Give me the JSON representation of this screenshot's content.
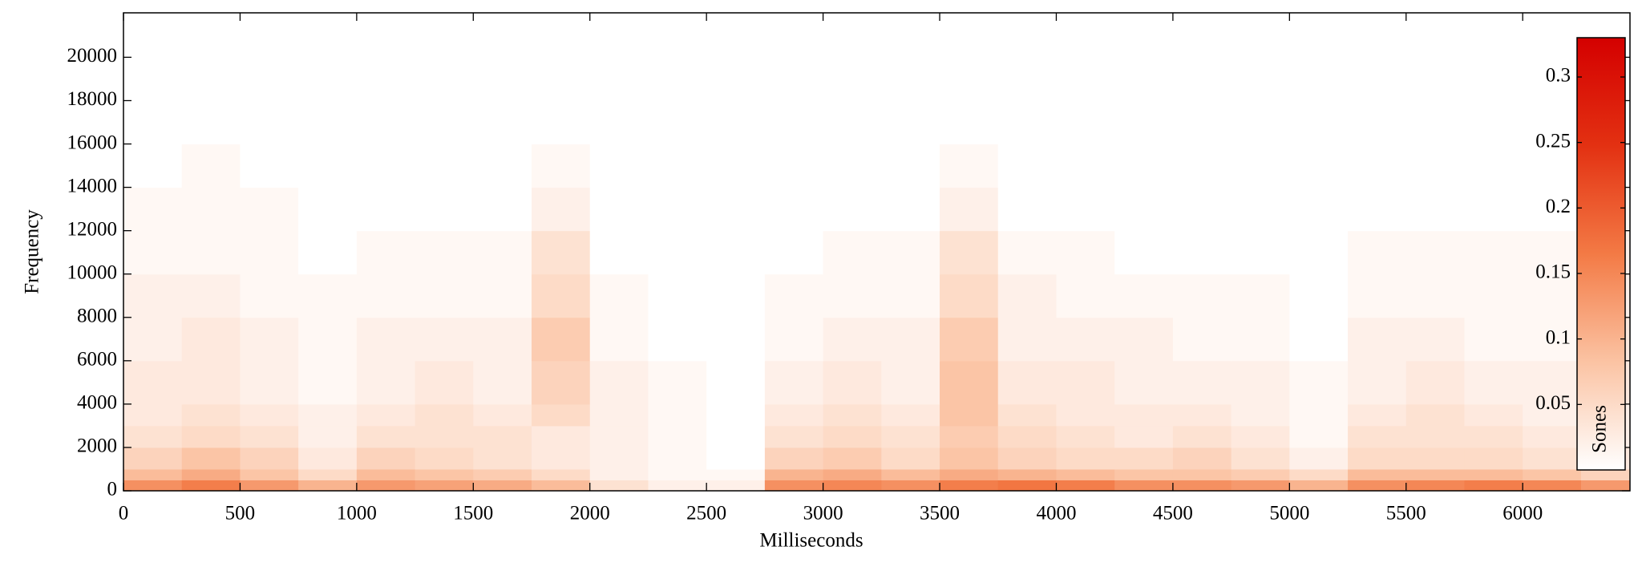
{
  "chart_data": {
    "type": "heatmap",
    "xlabel": "Milliseconds",
    "ylabel": "Frequency",
    "colorbar_label": "Sones",
    "xlim": [
      0,
      6460
    ],
    "ylim": [
      0,
      22050
    ],
    "xticks": [
      0,
      500,
      1000,
      1500,
      2000,
      2500,
      3000,
      3500,
      4000,
      4500,
      5000,
      5500,
      6000
    ],
    "yticks": [
      0,
      2000,
      4000,
      6000,
      8000,
      10000,
      12000,
      14000,
      16000,
      18000,
      20000
    ],
    "clim": [
      0,
      0.33
    ],
    "cticks": [
      0.05,
      0.1,
      0.15,
      0.2,
      0.25,
      0.3
    ],
    "colormap": [
      "#ffffff",
      "#fbc3a3",
      "#f37a45",
      "#e33112",
      "#d40000"
    ],
    "x_bins": [
      0,
      250,
      500,
      750,
      1000,
      1250,
      1500,
      1750,
      2000,
      2250,
      2500,
      2750,
      3000,
      3250,
      3500,
      3750,
      4000,
      4250,
      4500,
      4750,
      5000,
      5250,
      5500,
      5750,
      6000,
      6250,
      6460
    ],
    "y_bins": [
      0,
      500,
      1000,
      2000,
      3000,
      4000,
      6000,
      8000,
      10000,
      12000,
      14000,
      16000,
      22050
    ],
    "values": [
      [
        0.14,
        0.16,
        0.13,
        0.1,
        0.13,
        0.12,
        0.11,
        0.09,
        0.04,
        0.02,
        0.02,
        0.14,
        0.15,
        0.14,
        0.16,
        0.17,
        0.16,
        0.14,
        0.14,
        0.13,
        0.1,
        0.14,
        0.15,
        0.16,
        0.15,
        0.13
      ],
      [
        0.09,
        0.11,
        0.08,
        0.05,
        0.09,
        0.08,
        0.07,
        0.05,
        0.02,
        0.01,
        0.01,
        0.1,
        0.11,
        0.09,
        0.11,
        0.1,
        0.09,
        0.08,
        0.08,
        0.07,
        0.05,
        0.09,
        0.09,
        0.09,
        0.08,
        0.06
      ],
      [
        0.06,
        0.08,
        0.06,
        0.03,
        0.06,
        0.05,
        0.04,
        0.03,
        0.02,
        0.01,
        0,
        0.06,
        0.07,
        0.05,
        0.08,
        0.06,
        0.05,
        0.05,
        0.06,
        0.04,
        0.02,
        0.05,
        0.05,
        0.05,
        0.04,
        0.03
      ],
      [
        0.04,
        0.05,
        0.04,
        0.02,
        0.04,
        0.04,
        0.04,
        0.03,
        0.02,
        0.01,
        0,
        0.04,
        0.05,
        0.04,
        0.07,
        0.05,
        0.04,
        0.03,
        0.04,
        0.03,
        0.01,
        0.04,
        0.04,
        0.04,
        0.03,
        0.02
      ],
      [
        0.03,
        0.04,
        0.03,
        0.02,
        0.03,
        0.04,
        0.03,
        0.05,
        0.02,
        0.01,
        0,
        0.03,
        0.04,
        0.03,
        0.08,
        0.04,
        0.03,
        0.03,
        0.03,
        0.02,
        0.01,
        0.03,
        0.04,
        0.03,
        0.02,
        0.02
      ],
      [
        0.03,
        0.03,
        0.02,
        0.01,
        0.02,
        0.03,
        0.02,
        0.06,
        0.02,
        0.01,
        0,
        0.02,
        0.03,
        0.02,
        0.08,
        0.03,
        0.03,
        0.02,
        0.02,
        0.02,
        0.01,
        0.02,
        0.03,
        0.02,
        0.02,
        0.03
      ],
      [
        0.02,
        0.03,
        0.02,
        0.01,
        0.02,
        0.02,
        0.02,
        0.07,
        0.01,
        0,
        0,
        0.01,
        0.02,
        0.02,
        0.07,
        0.02,
        0.02,
        0.02,
        0.01,
        0.01,
        0,
        0.02,
        0.02,
        0.01,
        0.01,
        0.03
      ],
      [
        0.02,
        0.02,
        0.01,
        0.01,
        0.01,
        0.01,
        0.01,
        0.05,
        0.01,
        0,
        0,
        0.01,
        0.01,
        0.01,
        0.05,
        0.02,
        0.01,
        0.01,
        0.01,
        0.01,
        0,
        0.01,
        0.01,
        0.01,
        0.01,
        0.02
      ],
      [
        0.01,
        0.01,
        0.01,
        0,
        0.01,
        0.01,
        0.01,
        0.04,
        0,
        0,
        0,
        0,
        0.01,
        0.01,
        0.04,
        0.01,
        0.01,
        0,
        0,
        0,
        0,
        0.01,
        0.01,
        0.01,
        0.01,
        0.02
      ],
      [
        0.01,
        0.01,
        0.01,
        0,
        0,
        0,
        0,
        0.02,
        0,
        0,
        0,
        0,
        0,
        0,
        0.02,
        0,
        0,
        0,
        0,
        0,
        0,
        0,
        0,
        0,
        0,
        0.01
      ],
      [
        0,
        0.01,
        0,
        0,
        0,
        0,
        0,
        0.01,
        0,
        0,
        0,
        0,
        0,
        0,
        0.01,
        0,
        0,
        0,
        0,
        0,
        0,
        0,
        0,
        0,
        0,
        0
      ],
      [
        0,
        0,
        0,
        0,
        0,
        0,
        0,
        0,
        0,
        0,
        0,
        0,
        0,
        0,
        0,
        0,
        0,
        0,
        0,
        0,
        0,
        0,
        0,
        0,
        0,
        0
      ]
    ]
  }
}
